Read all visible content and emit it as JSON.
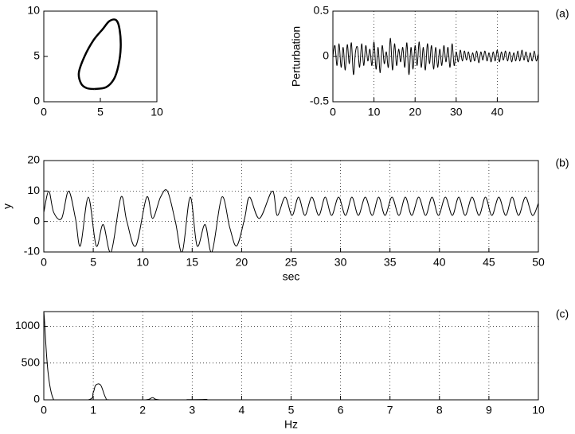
{
  "chart_data": [
    {
      "type": "line",
      "color": "#000000",
      "xlim": [
        0,
        10
      ],
      "ylim": [
        0,
        10
      ],
      "xticks": [
        0,
        5,
        10
      ],
      "yticks": [
        0,
        5,
        10
      ],
      "grid": false,
      "x": [
        4.5,
        5.5,
        6.2,
        6.6,
        6.8,
        6.7,
        6.4,
        5.8,
        5.2,
        4.4,
        3.6,
        3.1,
        3.3,
        3.8,
        4.5
      ],
      "values": [
        1.4,
        1.6,
        2.5,
        4,
        6,
        8,
        9,
        8.9,
        8,
        6.8,
        5,
        3.2,
        2,
        1.5,
        1.4
      ]
    },
    {
      "type": "line",
      "color": "#000000",
      "ylabel": "Perturbation",
      "panel_label": "(a)",
      "xlim": [
        0,
        50
      ],
      "ylim": [
        -0.5,
        0.5
      ],
      "xticks": [
        0,
        10,
        20,
        30,
        40
      ],
      "yticks": [
        -0.5,
        0,
        0.5
      ],
      "grid": true,
      "x": [
        0,
        0.5,
        1,
        1.5,
        2,
        2.5,
        3,
        3.5,
        4,
        4.5,
        5,
        5.5,
        6,
        6.5,
        7,
        7.5,
        8,
        8.5,
        9,
        9.5,
        10,
        10.5,
        11,
        11.5,
        12,
        12.5,
        13,
        13.5,
        14,
        14.5,
        15,
        15.5,
        16,
        16.5,
        17,
        17.5,
        18,
        18.5,
        19,
        19.5,
        20,
        20.5,
        21,
        21.5,
        22,
        22.5,
        23,
        23.5,
        24,
        24.5,
        25,
        25.5,
        26,
        26.5,
        27,
        27.5,
        28,
        28.5,
        29,
        29.5,
        30,
        30.5,
        31,
        31.5,
        32,
        32.5,
        33,
        33.5,
        34,
        34.5,
        35,
        35.5,
        36,
        36.5,
        37,
        37.5,
        38,
        38.5,
        39,
        39.5,
        40,
        40.5,
        41,
        41.5,
        42,
        42.5,
        43,
        43.5,
        44,
        44.5,
        45,
        45.5,
        46,
        46.5,
        47,
        47.5,
        48,
        48.5,
        49,
        49.5,
        50
      ],
      "values": [
        0,
        0.12,
        -0.1,
        0.14,
        -0.12,
        0.1,
        -0.15,
        0.13,
        -0.08,
        0.15,
        -0.2,
        0.05,
        0.1,
        -0.12,
        0.14,
        -0.1,
        0.12,
        -0.05,
        0.08,
        -0.1,
        0.16,
        -0.14,
        0.1,
        -0.18,
        0.12,
        -0.08,
        0.05,
        -0.12,
        0.2,
        -0.15,
        0.14,
        -0.1,
        0.08,
        -0.06,
        0.1,
        -0.12,
        0.15,
        -0.2,
        0.1,
        -0.14,
        0.12,
        -0.1,
        0.16,
        -0.12,
        0.1,
        -0.15,
        0.14,
        -0.08,
        0.12,
        -0.14,
        0.1,
        -0.12,
        0.08,
        -0.1,
        0.12,
        -0.06,
        0.1,
        -0.12,
        0.14,
        -0.1,
        0.05,
        -0.06,
        0.07,
        -0.05,
        0.06,
        -0.04,
        0.05,
        -0.06,
        0.04,
        -0.05,
        0.06,
        -0.07,
        0.05,
        -0.04,
        0.06,
        -0.05,
        0.04,
        -0.06,
        0.05,
        -0.05,
        0.07,
        -0.06,
        0.05,
        -0.04,
        0.06,
        -0.05,
        0.05,
        -0.06,
        0.04,
        -0.05,
        0.06,
        -0.05,
        0.07,
        -0.04,
        0.05,
        -0.06,
        0.04,
        -0.05,
        0.06,
        -0.05,
        0.03
      ]
    },
    {
      "type": "line",
      "color": "#000000",
      "ylabel": "y",
      "xlabel": "sec",
      "panel_label": "(b)",
      "xlim": [
        0,
        50
      ],
      "ylim": [
        -10,
        20
      ],
      "xticks": [
        0,
        5,
        10,
        15,
        20,
        25,
        30,
        35,
        40,
        45,
        50
      ],
      "yticks": [
        -10,
        0,
        10,
        20
      ],
      "grid": true,
      "x": [
        0,
        0.5,
        1,
        1.8,
        2.5,
        3.2,
        3.7,
        4.5,
        5.3,
        6,
        6.8,
        7.8,
        8.4,
        9.3,
        10.4,
        11,
        11.8,
        12.5,
        13.3,
        14,
        14.8,
        15.5,
        16.3,
        17,
        18,
        18.8,
        19.5,
        20.3,
        20.8,
        21.8,
        23.1,
        23.6,
        24.4,
        25.1,
        25.75,
        26.4,
        27.1,
        27.8,
        28.45,
        29.1,
        29.8,
        30.5,
        31.15,
        31.8,
        32.5,
        33.2,
        33.85,
        34.5,
        35.2,
        35.9,
        36.55,
        37.2,
        37.9,
        38.6,
        39.25,
        39.9,
        40.6,
        41.3,
        41.95,
        42.6,
        43.3,
        44,
        44.65,
        45.3,
        46,
        46.7,
        47.35,
        48,
        48.7,
        49.4,
        50
      ],
      "values": [
        3,
        10,
        3,
        1,
        10,
        1,
        -8,
        8,
        -8,
        -1,
        -10,
        8,
        0,
        -8,
        8,
        1,
        8,
        10,
        0,
        -10,
        8,
        -8,
        -1,
        -10,
        8,
        -2,
        -8,
        1,
        8,
        1,
        10,
        2,
        8,
        2,
        8,
        2,
        8,
        2,
        8,
        2,
        8,
        2,
        8,
        2,
        8,
        2,
        8,
        2,
        8,
        2,
        8,
        2,
        8,
        2,
        8,
        2,
        8,
        2,
        8,
        2,
        8,
        2,
        8,
        2,
        8,
        2,
        8,
        2,
        8,
        2,
        6
      ]
    },
    {
      "type": "line",
      "color": "#000000",
      "xlabel": "Hz",
      "panel_label": "(c)",
      "xlim": [
        0,
        10
      ],
      "ylim": [
        0,
        1200
      ],
      "xticks": [
        0,
        1,
        2,
        3,
        4,
        5,
        6,
        7,
        8,
        9,
        10
      ],
      "yticks": [
        0,
        500,
        1000
      ],
      "grid": true,
      "x": [
        0,
        0.2,
        0.9,
        1,
        1.05,
        1.15,
        1.25,
        1.35,
        2.05,
        2.2,
        2.35,
        3.2,
        3.3,
        3.4,
        10
      ],
      "values": [
        1200,
        0,
        0,
        100,
        200,
        200,
        30,
        0,
        0,
        30,
        0,
        0,
        5,
        0,
        0
      ]
    }
  ]
}
